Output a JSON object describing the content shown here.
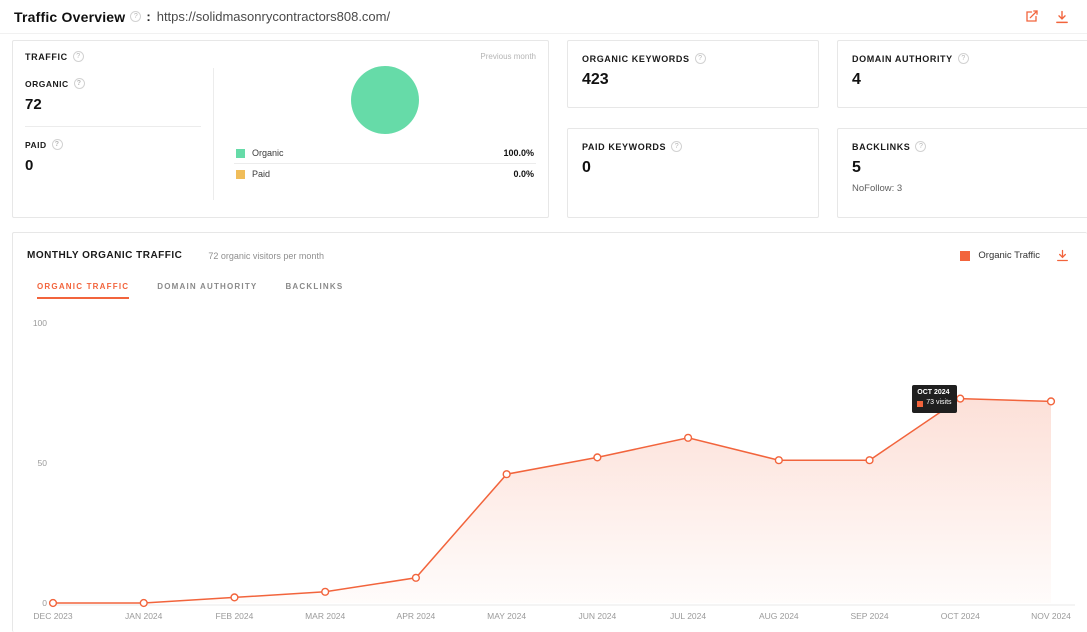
{
  "header": {
    "title": "Traffic Overview",
    "url_prefix": ":",
    "url": "https://solidmasonrycontractors808.com/"
  },
  "icons": {
    "info_glyph": "?"
  },
  "colors": {
    "accent_orange": "#f2643c",
    "organic_green": "#66dba8",
    "paid_yellow": "#f0bd5a"
  },
  "traffic_card": {
    "title": "TRAFFIC",
    "previous_month_label": "Previous month",
    "organic_label": "ORGANIC",
    "organic_value": "72",
    "paid_label": "PAID",
    "paid_value": "0",
    "legend": [
      {
        "label": "Organic",
        "value": "100.0%",
        "color": "#66dba8"
      },
      {
        "label": "Paid",
        "value": "0.0%",
        "color": "#f0bd5a"
      }
    ]
  },
  "stat_cards": {
    "organic_keywords": {
      "label": "ORGANIC KEYWORDS",
      "value": "423"
    },
    "domain_authority": {
      "label": "DOMAIN AUTHORITY",
      "value": "4"
    },
    "paid_keywords": {
      "label": "PAID KEYWORDS",
      "value": "0"
    },
    "backlinks": {
      "label": "BACKLINKS",
      "value": "5",
      "sub": "NoFollow: 3"
    }
  },
  "monthly": {
    "title": "MONTHLY ORGANIC TRAFFIC",
    "subtitle": "72 organic visitors per month",
    "legend_label": "Organic Traffic",
    "tabs": [
      {
        "label": "ORGANIC TRAFFIC"
      },
      {
        "label": "DOMAIN AUTHORITY"
      },
      {
        "label": "BACKLINKS"
      }
    ]
  },
  "chart_data": {
    "type": "line",
    "title": "MONTHLY ORGANIC TRAFFIC",
    "x": [
      "DEC 2023",
      "JAN 2024",
      "FEB 2024",
      "MAR 2024",
      "APR 2024",
      "MAY 2024",
      "JUN 2024",
      "JUL 2024",
      "AUG 2024",
      "SEP 2024",
      "OCT 2024",
      "NOV 2024"
    ],
    "series": [
      {
        "name": "Organic Traffic",
        "values": [
          0,
          0,
          2,
          4,
          9,
          46,
          52,
          59,
          51,
          51,
          73,
          72
        ]
      }
    ],
    "ylim": [
      0,
      100
    ],
    "yticks": [
      0,
      50,
      100
    ],
    "grid": false,
    "area_fill": true,
    "marker": "circle-open",
    "line_color": "#f2643c",
    "legend_position": "top-right",
    "tooltip": {
      "x": "OCT 2024",
      "label": "73 visits",
      "value": 73
    }
  },
  "pie_chart_data": {
    "type": "pie",
    "slices": [
      {
        "label": "Organic",
        "value": 100.0,
        "color": "#66dba8"
      },
      {
        "label": "Paid",
        "value": 0.0,
        "color": "#f0bd5a"
      }
    ]
  }
}
